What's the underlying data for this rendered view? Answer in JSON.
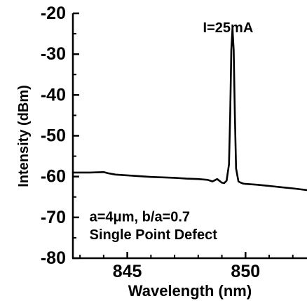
{
  "chart_data": {
    "type": "line",
    "title": "",
    "xlabel": "Wavelength (nm)",
    "ylabel": "Intensity (dBm)",
    "xlim": [
      842.7,
      852.6
    ],
    "ylim": [
      -80,
      -20
    ],
    "x_ticks": [
      {
        "value": 845,
        "label": "845"
      },
      {
        "value": 850,
        "label": "850"
      }
    ],
    "y_ticks": [
      {
        "value": -20,
        "label": "-20"
      },
      {
        "value": -30,
        "label": "-30"
      },
      {
        "value": -40,
        "label": "-40"
      },
      {
        "value": -50,
        "label": "-50"
      },
      {
        "value": -60,
        "label": "-60"
      },
      {
        "value": -70,
        "label": "-70"
      },
      {
        "value": -80,
        "label": "-80"
      }
    ],
    "grid": false,
    "series": [
      {
        "color": "#000000",
        "x": [
          842.7,
          843.4,
          844.0,
          844.2,
          844.5,
          845.0,
          845.5,
          846.0,
          846.5,
          847.0,
          847.5,
          848.0,
          848.4,
          848.6,
          848.8,
          849.0,
          849.1,
          849.2,
          849.3,
          849.35,
          849.4,
          849.45,
          849.5,
          849.55,
          849.6,
          849.7,
          849.8,
          849.9,
          850.0,
          850.5,
          851.0,
          851.5,
          852.0,
          852.6
        ],
        "y": [
          -59.0,
          -59.0,
          -58.9,
          -59.2,
          -59.5,
          -59.7,
          -59.9,
          -60.1,
          -60.2,
          -60.3,
          -60.5,
          -60.6,
          -60.8,
          -61.2,
          -60.6,
          -61.5,
          -61.6,
          -61.0,
          -57.0,
          -45.0,
          -29.0,
          -23.8,
          -29.0,
          -45.0,
          -58.0,
          -61.2,
          -61.5,
          -61.7,
          -61.8,
          -62.0,
          -62.3,
          -62.6,
          -62.9,
          -63.3
        ]
      }
    ],
    "annotations": [
      {
        "text": "I=25mA",
        "x": 848.2,
        "y": -24.6
      },
      {
        "text": "a=4μm, b/a=0.7",
        "x": 843.4,
        "y": -71.0
      },
      {
        "text": "Single Point Defect",
        "x": 843.4,
        "y": -75.4
      }
    ],
    "colors": {
      "line": "#000000",
      "axes": "#000000",
      "background": "#ffffff"
    }
  }
}
